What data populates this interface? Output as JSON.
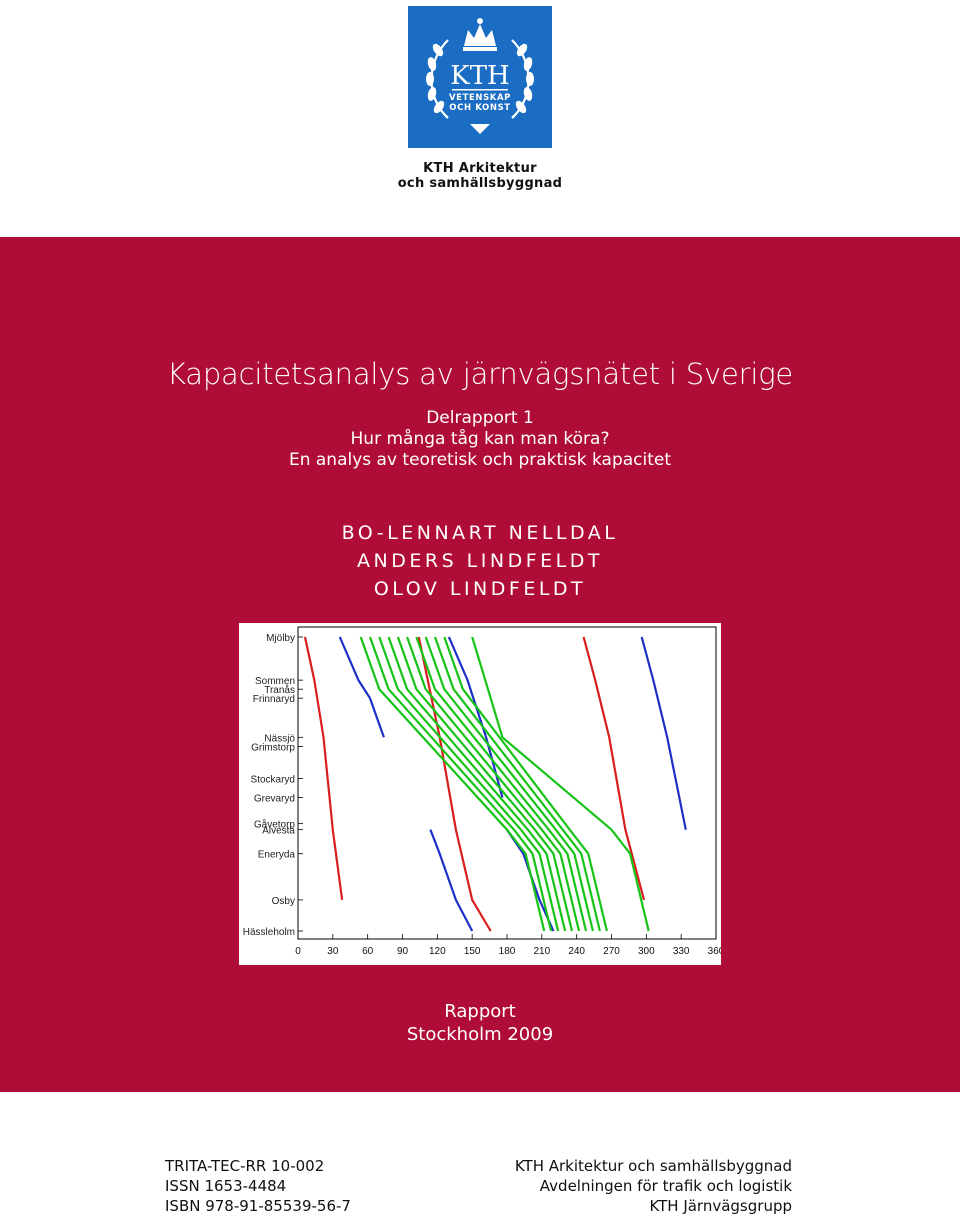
{
  "logo": {
    "line1": "KTH",
    "line2": "VETENSKAP",
    "line3": "OCH KONST",
    "bg_color": "#1a6dc2"
  },
  "department": [
    "KTH Arkitektur",
    "och samhällsbyggnad"
  ],
  "band_color": "#b00c38",
  "title": "Kapacitetsanalys av järnvägsnätet i Sverige",
  "subtitle": [
    "Delrapport 1",
    "Hur många tåg kan man köra?",
    "En analys av teoretisk och praktisk kapacitet"
  ],
  "authors": [
    "BO-LENNART NELLDAL",
    "ANDERS LINDFELDT",
    "OLOV LINDFELDT"
  ],
  "chart_data": {
    "type": "line",
    "x_ticks": [
      0,
      30,
      60,
      90,
      120,
      150,
      180,
      210,
      240,
      270,
      300,
      330,
      360
    ],
    "xlim": [
      0,
      360
    ],
    "stations": [
      {
        "name": "Mjölby",
        "pos": 0
      },
      {
        "name": "Sommen",
        "pos": 43
      },
      {
        "name": "Tranås",
        "pos": 52
      },
      {
        "name": "Frinnaryd",
        "pos": 61
      },
      {
        "name": "Nässjö",
        "pos": 100
      },
      {
        "name": "Grimstorp",
        "pos": 109
      },
      {
        "name": "Stockaryd",
        "pos": 141
      },
      {
        "name": "Grevaryd",
        "pos": 160
      },
      {
        "name": "Gåvetorp",
        "pos": 186
      },
      {
        "name": "Alvesta",
        "pos": 192
      },
      {
        "name": "Eneryda",
        "pos": 216
      },
      {
        "name": "Osby",
        "pos": 262
      },
      {
        "name": "Hässleholm",
        "pos": 293
      }
    ],
    "ylim": [
      0,
      293
    ],
    "series": [
      {
        "color": "#d81e1e",
        "x": [
          6,
          14,
          22,
          30,
          38
        ],
        "y": [
          0,
          43,
          100,
          192,
          262
        ]
      },
      {
        "color": "#d81e1e",
        "x": [
          104,
          122,
          136,
          150,
          166
        ],
        "y": [
          0,
          100,
          192,
          262,
          293
        ]
      },
      {
        "color": "#d81e1e",
        "x": [
          246,
          256,
          268,
          282,
          298
        ],
        "y": [
          0,
          43,
          100,
          192,
          262
        ]
      },
      {
        "color": "#1e2fc8",
        "x": [
          36,
          52,
          62,
          74
        ],
        "y": [
          0,
          43,
          61,
          100
        ]
      },
      {
        "color": "#1e2fc8",
        "x": [
          130,
          146,
          162,
          176
        ],
        "y": [
          0,
          43,
          100,
          160
        ]
      },
      {
        "color": "#1e2fc8",
        "x": [
          180,
          194,
          208,
          220
        ],
        "y": [
          192,
          216,
          262,
          293
        ]
      },
      {
        "color": "#1e2fc8",
        "x": [
          296,
          306,
          318,
          334
        ],
        "y": [
          0,
          43,
          100,
          192
        ]
      },
      {
        "color": "#1e2fc8",
        "x": [
          114,
          122,
          136,
          150
        ],
        "y": [
          192,
          216,
          262,
          293
        ]
      },
      {
        "color": "#16c316",
        "x": [
          54,
          70,
          180,
          196,
          212
        ],
        "y": [
          0,
          52,
          192,
          216,
          293
        ]
      },
      {
        "color": "#16c316",
        "x": [
          62,
          78,
          186,
          202,
          218
        ],
        "y": [
          0,
          52,
          192,
          216,
          293
        ]
      },
      {
        "color": "#16c316",
        "x": [
          70,
          86,
          192,
          208,
          224
        ],
        "y": [
          0,
          52,
          192,
          216,
          293
        ]
      },
      {
        "color": "#16c316",
        "x": [
          78,
          94,
          198,
          214,
          230
        ],
        "y": [
          0,
          52,
          192,
          216,
          293
        ]
      },
      {
        "color": "#16c316",
        "x": [
          86,
          102,
          204,
          220,
          236
        ],
        "y": [
          0,
          52,
          192,
          216,
          293
        ]
      },
      {
        "color": "#16c316",
        "x": [
          94,
          110,
          210,
          226,
          242
        ],
        "y": [
          0,
          52,
          192,
          216,
          293
        ]
      },
      {
        "color": "#16c316",
        "x": [
          102,
          118,
          216,
          232,
          248
        ],
        "y": [
          0,
          52,
          192,
          216,
          293
        ]
      },
      {
        "color": "#16c316",
        "x": [
          110,
          126,
          222,
          238,
          254
        ],
        "y": [
          0,
          52,
          192,
          216,
          293
        ]
      },
      {
        "color": "#16c316",
        "x": [
          118,
          134,
          228,
          244,
          260
        ],
        "y": [
          0,
          52,
          192,
          216,
          293
        ]
      },
      {
        "color": "#16c316",
        "x": [
          126,
          142,
          234,
          250,
          266
        ],
        "y": [
          0,
          52,
          192,
          216,
          293
        ]
      },
      {
        "color": "#16c316",
        "x": [
          150,
          166,
          176,
          270,
          286,
          302
        ],
        "y": [
          0,
          61,
          100,
          192,
          216,
          293
        ]
      }
    ]
  },
  "report": [
    "Rapport",
    "Stockholm 2009"
  ],
  "footer_left": [
    "TRITA-TEC-RR 10-002",
    "ISSN 1653-4484",
    "ISBN 978-91-85539-56-7"
  ],
  "footer_right": [
    "KTH Arkitektur och samhällsbyggnad",
    "Avdelningen för trafik och logistik",
    "KTH Järnvägsgrupp"
  ]
}
